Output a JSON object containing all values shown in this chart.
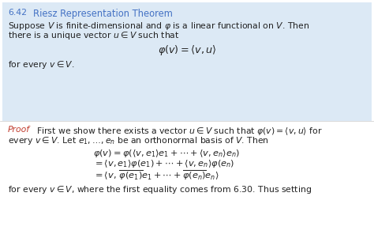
{
  "bg_color": "#ffffff",
  "theorem_bg": "#dce9f5",
  "theorem_title_color": "#4472c4",
  "proof_label_color": "#c0392b",
  "text_color": "#222222",
  "figsize": [
    4.74,
    3.01
  ],
  "dpi": 100
}
